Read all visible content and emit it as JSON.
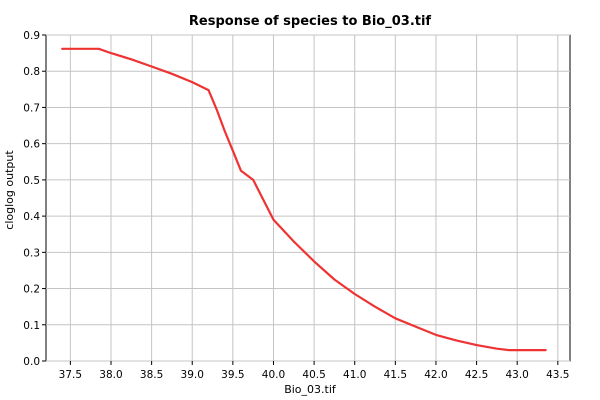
{
  "chart_data": {
    "type": "line",
    "title": "Response of species to Bio_03.tif",
    "xlabel": "Bio_03.tif",
    "ylabel": "cloglog output",
    "xlim": [
      37.2,
      43.65
    ],
    "ylim": [
      0.0,
      0.9
    ],
    "x_ticks": [
      "37.5",
      "38.0",
      "38.5",
      "39.0",
      "39.5",
      "40.0",
      "40.5",
      "41.0",
      "41.5",
      "42.0",
      "42.5",
      "43.0",
      "43.5"
    ],
    "y_ticks": [
      "0.0",
      "0.1",
      "0.2",
      "0.3",
      "0.4",
      "0.5",
      "0.6",
      "0.7",
      "0.8",
      "0.9"
    ],
    "grid": true,
    "line_color": "#ee3333",
    "series": [
      {
        "x": [
          37.4,
          37.85,
          38.0,
          38.25,
          38.5,
          38.75,
          39.0,
          39.2,
          39.3,
          39.4,
          39.5,
          39.6,
          39.75,
          40.0,
          40.25,
          40.5,
          40.75,
          41.0,
          41.25,
          41.5,
          41.75,
          42.0,
          42.25,
          42.5,
          42.75,
          42.9,
          43.1,
          43.35
        ],
        "y": [
          0.862,
          0.862,
          0.85,
          0.833,
          0.813,
          0.793,
          0.77,
          0.748,
          0.695,
          0.635,
          0.58,
          0.525,
          0.5,
          0.39,
          0.33,
          0.275,
          0.225,
          0.185,
          0.15,
          0.118,
          0.095,
          0.072,
          0.057,
          0.044,
          0.034,
          0.03,
          0.03,
          0.03
        ]
      }
    ]
  }
}
